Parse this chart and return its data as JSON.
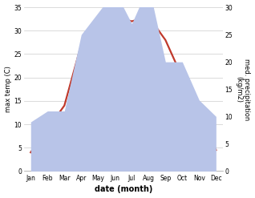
{
  "months": [
    "Jan",
    "Feb",
    "Mar",
    "Apr",
    "May",
    "Jun",
    "Jul",
    "Aug",
    "Sep",
    "Oct",
    "Nov",
    "Dec"
  ],
  "temperature": [
    4.0,
    9.0,
    14.0,
    27.0,
    25.0,
    33.0,
    32.0,
    33.0,
    28.0,
    20.0,
    13.0,
    4.5
  ],
  "precipitation": [
    9,
    11,
    11,
    25,
    29,
    33,
    27,
    34,
    20,
    20,
    13,
    10
  ],
  "temp_color": "#c0392b",
  "precip_color": "#b8c4e8",
  "temp_ylim": [
    0,
    35
  ],
  "precip_ylim": [
    0,
    30
  ],
  "temp_yticks": [
    0,
    5,
    10,
    15,
    20,
    25,
    30,
    35
  ],
  "precip_yticks": [
    0,
    5,
    10,
    15,
    20,
    25,
    30
  ],
  "xlabel": "date (month)",
  "ylabel_left": "max temp (C)",
  "ylabel_right": "med. precipitation\n(kg/m2)",
  "bg_color": "#ffffff",
  "line_width": 1.6,
  "grid_color": "#cccccc"
}
